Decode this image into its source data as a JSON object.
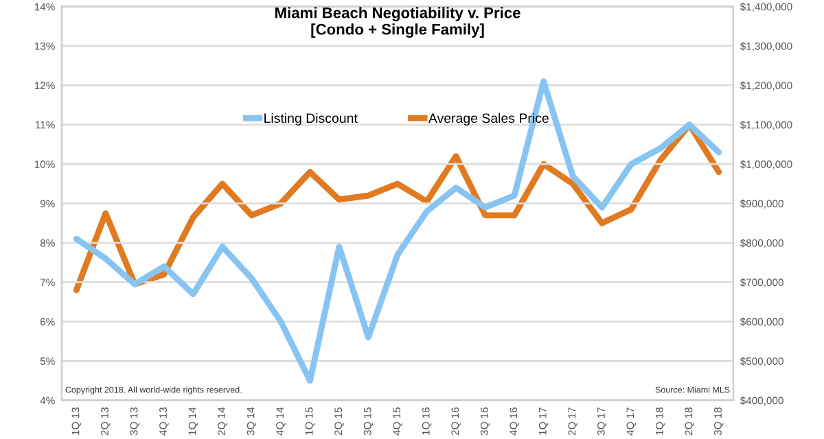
{
  "chart_data": {
    "type": "line",
    "title": "Miami Beach Negotiability v. Price\n[Condo + Single Family]",
    "categories": [
      "1Q 13",
      "2Q 13",
      "3Q 13",
      "4Q 13",
      "1Q 14",
      "2Q 14",
      "3Q 14",
      "4Q 14",
      "1Q 15",
      "2Q 15",
      "3Q 15",
      "4Q 15",
      "1Q 16",
      "2Q 16",
      "3Q 16",
      "4Q 16",
      "1Q 17",
      "2Q 17",
      "3Q 17",
      "4Q 17",
      "1Q 18",
      "2Q 18",
      "3Q 18"
    ],
    "series": [
      {
        "name": "Listing Discount",
        "color": "#88c4f2",
        "values": [
          8.1,
          7.6,
          6.95,
          7.4,
          6.7,
          7.9,
          7.1,
          6.0,
          4.5,
          7.9,
          5.6,
          7.7,
          8.8,
          9.4,
          8.9,
          9.2,
          12.1,
          9.7,
          8.9,
          10.0,
          10.4,
          11.0,
          10.3
        ]
      },
      {
        "name": "Average Sales Price",
        "color": "#e07b22",
        "axis": "y2",
        "values": [
          680000,
          875000,
          695000,
          720000,
          865000,
          950000,
          870000,
          900000,
          980000,
          910000,
          920000,
          950000,
          905000,
          1020000,
          870000,
          870000,
          1000000,
          950000,
          850000,
          885000,
          1010000,
          1100000,
          980000
        ]
      }
    ],
    "ylim": [
      4,
      14
    ],
    "yticks": [
      {
        "value": 4,
        "label": "4%"
      },
      {
        "value": 5,
        "label": "5%"
      },
      {
        "value": 6,
        "label": "6%"
      },
      {
        "value": 7,
        "label": "7%"
      },
      {
        "value": 8,
        "label": "8%"
      },
      {
        "value": 9,
        "label": "9%"
      },
      {
        "value": 10,
        "label": "10%"
      },
      {
        "value": 11,
        "label": "11%"
      },
      {
        "value": 12,
        "label": "12%"
      },
      {
        "value": 13,
        "label": "13%"
      },
      {
        "value": 14,
        "label": "14%"
      }
    ],
    "y2lim": [
      400000,
      1400000
    ],
    "y2ticks": [
      {
        "value": 400000,
        "label": "$400,000"
      },
      {
        "value": 500000,
        "label": "$500,000"
      },
      {
        "value": 600000,
        "label": "$600,000"
      },
      {
        "value": 700000,
        "label": "$700,000"
      },
      {
        "value": 800000,
        "label": "$800,000"
      },
      {
        "value": 900000,
        "label": "$900,000"
      },
      {
        "value": 1000000,
        "label": "$1,000,000"
      },
      {
        "value": 1100000,
        "label": "$1,100,000"
      },
      {
        "value": 1200000,
        "label": "$1,200,000"
      },
      {
        "value": 1300000,
        "label": "$1,300,000"
      },
      {
        "value": 1400000,
        "label": "$1,400,000"
      }
    ],
    "grid": "y",
    "legend": "top",
    "marker": "none",
    "line_style": "solid",
    "annotations": [
      "Copyright 2018. All world-wide rights reserved.",
      "Source: Miami MLS"
    ]
  }
}
